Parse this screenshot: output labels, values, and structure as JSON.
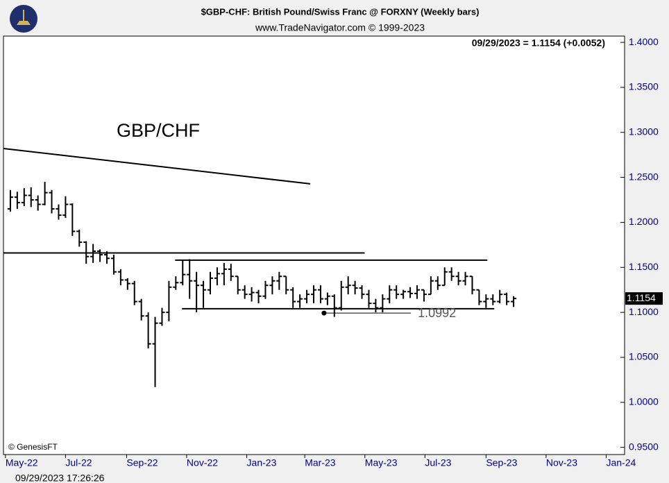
{
  "chart_data": {
    "type": "ohlc",
    "title": "$GBP-CHF:  British Pound/Swiss Franc @ FORXNY  (Weekly bars)",
    "subtitle": "www.TradeNavigator.com © 1999-2023",
    "quote": "09/29/2023 = 1.1154 (+0.0052)",
    "annotation": "GBP/CHF",
    "copyright": "© GenesisFT",
    "timestamp": "09/29/2023 17:26:26",
    "x": [
      0,
      1,
      2,
      3,
      4,
      5,
      6,
      7,
      8,
      9,
      10,
      11,
      12,
      13,
      14,
      15,
      16,
      17,
      18,
      19,
      20,
      21,
      22,
      23,
      24,
      25,
      26,
      27,
      28,
      29,
      30,
      31,
      32,
      33,
      34,
      35,
      36,
      37,
      38,
      39,
      40,
      41,
      42,
      43,
      44,
      45,
      46,
      47,
      48,
      49,
      50,
      51,
      52,
      53,
      54,
      55,
      56,
      57,
      58,
      59,
      60,
      61,
      62,
      63,
      64,
      65,
      66,
      67,
      68,
      69,
      70,
      71,
      72,
      73
    ],
    "ohlc": {
      "open": [
        1.215,
        1.228,
        1.222,
        1.23,
        1.225,
        1.22,
        1.233,
        1.215,
        1.208,
        1.22,
        1.19,
        1.178,
        1.162,
        1.168,
        1.164,
        1.16,
        1.145,
        1.136,
        1.132,
        1.112,
        1.096,
        1.065,
        1.088,
        1.1,
        1.128,
        1.133,
        1.142,
        1.135,
        1.13,
        1.125,
        1.138,
        1.143,
        1.148,
        1.14,
        1.125,
        1.12,
        1.122,
        1.118,
        1.13,
        1.135,
        1.14,
        1.125,
        1.112,
        1.115,
        1.12,
        1.125,
        1.115,
        1.118,
        1.105,
        1.128,
        1.13,
        1.127,
        1.12,
        1.11,
        1.105,
        1.115,
        1.125,
        1.12,
        1.123,
        1.121,
        1.125,
        1.12,
        1.135,
        1.13,
        1.145,
        1.14,
        1.135,
        1.14,
        1.125,
        1.112,
        1.115,
        1.112,
        1.12,
        1.112
      ],
      "high": [
        1.236,
        1.234,
        1.238,
        1.239,
        1.23,
        1.245,
        1.236,
        1.22,
        1.229,
        1.221,
        1.192,
        1.179,
        1.176,
        1.17,
        1.168,
        1.164,
        1.148,
        1.138,
        1.135,
        1.115,
        1.1,
        1.095,
        1.105,
        1.135,
        1.14,
        1.158,
        1.159,
        1.145,
        1.135,
        1.145,
        1.15,
        1.155,
        1.154,
        1.14,
        1.13,
        1.128,
        1.125,
        1.135,
        1.14,
        1.145,
        1.14,
        1.128,
        1.12,
        1.125,
        1.13,
        1.13,
        1.122,
        1.12,
        1.135,
        1.14,
        1.135,
        1.13,
        1.125,
        1.115,
        1.12,
        1.13,
        1.13,
        1.125,
        1.128,
        1.13,
        1.125,
        1.14,
        1.14,
        1.15,
        1.15,
        1.145,
        1.145,
        1.14,
        1.125,
        1.12,
        1.12,
        1.125,
        1.122,
        1.118
      ],
      "low": [
        1.212,
        1.215,
        1.218,
        1.217,
        1.213,
        1.219,
        1.21,
        1.203,
        1.205,
        1.185,
        1.173,
        1.154,
        1.155,
        1.156,
        1.154,
        1.142,
        1.13,
        1.125,
        1.108,
        1.091,
        1.06,
        1.017,
        1.085,
        1.09,
        1.125,
        1.13,
        1.115,
        1.1,
        1.105,
        1.12,
        1.13,
        1.13,
        1.135,
        1.12,
        1.115,
        1.112,
        1.11,
        1.115,
        1.12,
        1.125,
        1.12,
        1.105,
        1.105,
        1.11,
        1.11,
        1.11,
        1.108,
        1.095,
        1.102,
        1.12,
        1.12,
        1.115,
        1.105,
        1.1,
        1.1,
        1.11,
        1.115,
        1.115,
        1.116,
        1.115,
        1.112,
        1.12,
        1.125,
        1.13,
        1.135,
        1.13,
        1.13,
        1.12,
        1.108,
        1.105,
        1.108,
        1.11,
        1.108,
        1.106
      ],
      "close": [
        1.228,
        1.222,
        1.23,
        1.225,
        1.22,
        1.233,
        1.215,
        1.208,
        1.22,
        1.19,
        1.178,
        1.162,
        1.168,
        1.164,
        1.16,
        1.145,
        1.136,
        1.132,
        1.112,
        1.096,
        1.065,
        1.088,
        1.1,
        1.128,
        1.133,
        1.142,
        1.135,
        1.13,
        1.125,
        1.138,
        1.143,
        1.148,
        1.14,
        1.125,
        1.12,
        1.122,
        1.118,
        1.13,
        1.135,
        1.14,
        1.125,
        1.112,
        1.115,
        1.12,
        1.125,
        1.115,
        1.118,
        1.105,
        1.128,
        1.13,
        1.127,
        1.12,
        1.11,
        1.105,
        1.115,
        1.125,
        1.12,
        1.123,
        1.121,
        1.125,
        1.12,
        1.135,
        1.13,
        1.145,
        1.14,
        1.135,
        1.14,
        1.125,
        1.112,
        1.115,
        1.112,
        1.12,
        1.112,
        1.1154
      ]
    },
    "color": "#000000",
    "trendlines": [
      {
        "x": [
          -1,
          43.5
        ],
        "y": [
          1.2821,
          1.2428
        ]
      },
      {
        "x": [
          -1,
          51.4
        ],
        "y": [
          1.166,
          1.166
        ]
      },
      {
        "x": [
          23.9,
          69.2
        ],
        "y": [
          1.158,
          1.158
        ]
      },
      {
        "x": [
          24.9,
          70.2
        ],
        "y": [
          1.104,
          1.104
        ]
      }
    ],
    "marker": {
      "x": 45.5,
      "x_end": 58.1,
      "value": 1.0992
    },
    "xlim": [
      -1,
      89.1
    ],
    "xticks": [
      {
        "value": -0.71,
        "label": "May-22"
      },
      {
        "value": 8.0,
        "label": "Jul-22"
      },
      {
        "value": 16.86,
        "label": "Sep-22"
      },
      {
        "value": 25.57,
        "label": "Nov-22"
      },
      {
        "value": 34.29,
        "label": "Jan-23"
      },
      {
        "value": 42.71,
        "label": "Mar-23"
      },
      {
        "value": 51.43,
        "label": "May-23"
      },
      {
        "value": 60.14,
        "label": "Jul-23"
      },
      {
        "value": 69.0,
        "label": "Sep-23"
      },
      {
        "value": 77.71,
        "label": "Nov-23"
      },
      {
        "value": 86.43,
        "label": "Jan-24"
      }
    ],
    "ylim": [
      0.942,
      1.407
    ],
    "yticks": [
      {
        "value": 0.95,
        "label": "0.9500"
      },
      {
        "value": 1.0,
        "label": "1.0000"
      },
      {
        "value": 1.05,
        "label": "1.0500"
      },
      {
        "value": 1.1,
        "label": "1.1000"
      },
      {
        "value": 1.15,
        "label": "1.1500"
      },
      {
        "value": 1.2,
        "label": "1.2000"
      },
      {
        "value": 1.25,
        "label": "1.2500"
      },
      {
        "value": 1.3,
        "label": "1.3000"
      },
      {
        "value": 1.35,
        "label": "1.3500"
      },
      {
        "value": 1.4,
        "label": "1.4000"
      }
    ]
  }
}
